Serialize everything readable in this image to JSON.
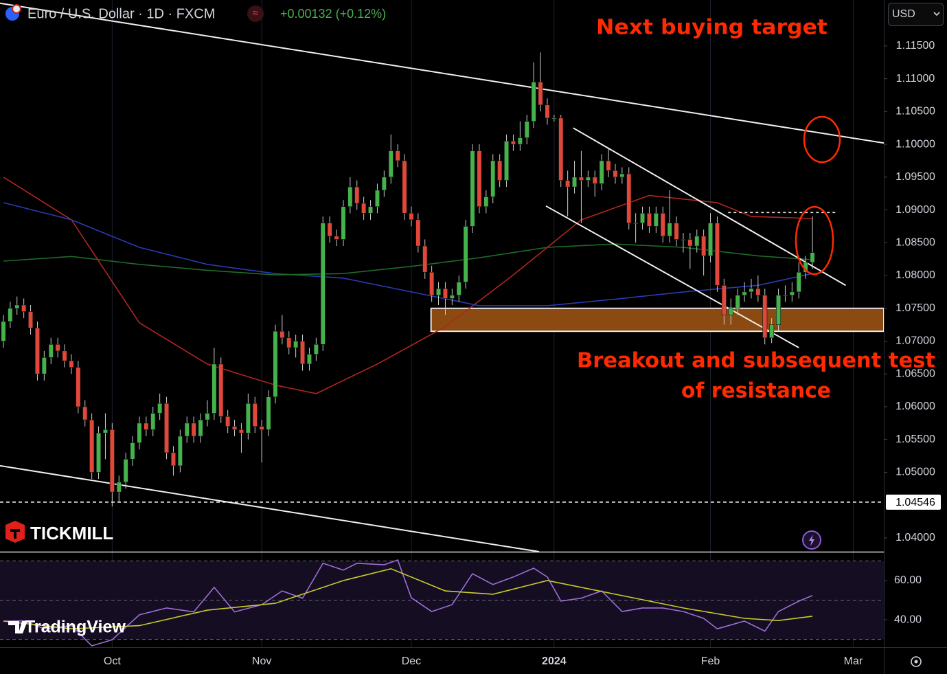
{
  "chart_data": {
    "type": "candlestick",
    "title": "Euro / U.S. Dollar · 1D · FXCM",
    "change": "+0.00132 (+0.12%)",
    "currency": "USD",
    "annotations": [
      "Next buying target",
      "Breakout and subsequent test",
      "of resistance"
    ],
    "brands": [
      "TICKMILL",
      "TradingView"
    ],
    "up_color": "#43b34a",
    "down_color": "#e2483a",
    "xlim": [
      -0.5,
      129.5
    ],
    "ylim": [
      1.0379,
      1.122
    ],
    "xticks": [
      {
        "value": 16,
        "label": "Oct"
      },
      {
        "value": 38,
        "label": "Nov"
      },
      {
        "value": 60,
        "label": "Dec"
      },
      {
        "value": 81,
        "label": "2024"
      },
      {
        "value": 104,
        "label": "Feb"
      },
      {
        "value": 125,
        "label": "Mar"
      }
    ],
    "yticks": [
      {
        "value": 1.04,
        "label": "1.04000"
      },
      {
        "value": 1.05,
        "label": "1.05000"
      },
      {
        "value": 1.055,
        "label": "1.05500"
      },
      {
        "value": 1.06,
        "label": "1.06000"
      },
      {
        "value": 1.065,
        "label": "1.06500"
      },
      {
        "value": 1.07,
        "label": "1.07000"
      },
      {
        "value": 1.075,
        "label": "1.07500"
      },
      {
        "value": 1.08,
        "label": "1.08000"
      },
      {
        "value": 1.085,
        "label": "1.08500"
      },
      {
        "value": 1.09,
        "label": "1.09000"
      },
      {
        "value": 1.095,
        "label": "1.09500"
      },
      {
        "value": 1.1,
        "label": "1.10000"
      },
      {
        "value": 1.105,
        "label": "1.10500"
      },
      {
        "value": 1.11,
        "label": "1.11000"
      },
      {
        "value": 1.115,
        "label": "1.11500"
      }
    ],
    "grid": "x",
    "price_line": {
      "value": 1.04546,
      "label": "1.04546"
    },
    "open": [
      1.07,
      1.073,
      1.075,
      1.0755,
      1.0745,
      1.072,
      1.065,
      1.0675,
      1.0695,
      1.0685,
      1.067,
      1.066,
      1.06,
      1.058,
      1.05,
      1.056,
      1.0565,
      1.047,
      1.0485,
      1.052,
      1.0545,
      1.0575,
      1.0565,
      1.059,
      1.0605,
      1.053,
      1.051,
      1.0555,
      1.0575,
      1.0555,
      1.058,
      1.059,
      1.0665,
      1.0585,
      1.057,
      1.0565,
      1.056,
      1.0605,
      1.057,
      1.0565,
      1.0615,
      1.0715,
      1.0705,
      1.069,
      1.07,
      1.0665,
      1.068,
      1.0695,
      1.088,
      1.086,
      1.0855,
      1.0905,
      1.0935,
      1.091,
      1.0895,
      1.0905,
      1.093,
      1.095,
      1.099,
      1.0975,
      1.0895,
      1.0885,
      1.0845,
      1.0805,
      1.077,
      1.078,
      1.0765,
      1.077,
      1.079,
      1.0875,
      1.099,
      1.0905,
      1.092,
      1.0975,
      1.0945,
      1.1005,
      1.1,
      1.101,
      1.1035,
      1.1095,
      1.106,
      1.104,
      1.104,
      1.0945,
      1.0935,
      1.095,
      1.0945,
      1.095,
      1.094,
      1.0975,
      1.096,
      1.095,
      1.0955,
      1.088,
      1.088,
      1.0895,
      1.0875,
      1.0895,
      1.086,
      1.088,
      1.0855,
      1.0855,
      1.0845,
      1.086,
      1.083,
      1.088,
      1.0785,
      1.074,
      1.075,
      1.077,
      1.0775,
      1.078,
      1.077,
      1.0705,
      1.0725,
      1.077,
      1.077,
      1.0775,
      1.0805,
      1.082
    ],
    "high": [
      1.074,
      1.076,
      1.0768,
      1.0765,
      1.0755,
      1.073,
      1.0685,
      1.0705,
      1.0705,
      1.0695,
      1.068,
      1.067,
      1.061,
      1.059,
      1.057,
      1.059,
      1.0575,
      1.0495,
      1.053,
      1.0555,
      1.0585,
      1.0585,
      1.06,
      1.062,
      1.0615,
      1.054,
      1.0565,
      1.0585,
      1.0585,
      1.059,
      1.061,
      1.069,
      1.0675,
      1.0595,
      1.058,
      1.0575,
      1.062,
      1.0615,
      1.058,
      1.0625,
      1.0725,
      1.074,
      1.0715,
      1.071,
      1.071,
      1.069,
      1.0705,
      1.089,
      1.089,
      1.087,
      1.0915,
      1.095,
      1.0945,
      1.092,
      1.0915,
      1.094,
      1.096,
      1.1015,
      1.1,
      1.0985,
      1.0905,
      1.0895,
      1.0855,
      1.0815,
      1.079,
      1.079,
      1.078,
      1.08,
      1.0885,
      1.1,
      1.1,
      1.093,
      1.0985,
      1.0985,
      1.1015,
      1.1015,
      1.1035,
      1.1045,
      1.1125,
      1.114,
      1.107,
      1.1045,
      1.1045,
      1.096,
      1.0975,
      1.099,
      1.096,
      1.096,
      1.0985,
      1.0995,
      1.097,
      1.0965,
      1.0965,
      1.0895,
      1.0905,
      1.0905,
      1.0905,
      1.0905,
      1.093,
      1.089,
      1.0865,
      1.0865,
      1.087,
      1.087,
      1.0895,
      1.089,
      1.0795,
      1.0765,
      1.078,
      1.079,
      1.0795,
      1.08,
      1.078,
      1.0735,
      1.078,
      1.0785,
      1.079,
      1.082,
      1.083,
      1.089
    ],
    "low": [
      1.069,
      1.072,
      1.074,
      1.0735,
      1.071,
      1.064,
      1.064,
      1.0665,
      1.0675,
      1.066,
      1.065,
      1.059,
      1.057,
      1.049,
      1.049,
      1.052,
      1.0448,
      1.0455,
      1.0475,
      1.051,
      1.0535,
      1.0555,
      1.0555,
      1.058,
      1.052,
      1.0495,
      1.05,
      1.0545,
      1.0545,
      1.0545,
      1.057,
      1.058,
      1.0575,
      1.056,
      1.0555,
      1.053,
      1.055,
      1.056,
      1.0515,
      1.0555,
      1.0605,
      1.0695,
      1.068,
      1.0675,
      1.0655,
      1.0655,
      1.067,
      1.0685,
      1.085,
      1.0845,
      1.0845,
      1.0895,
      1.09,
      1.0885,
      1.0885,
      1.0895,
      1.092,
      1.094,
      1.0965,
      1.0885,
      1.0875,
      1.0835,
      1.0795,
      1.076,
      1.0755,
      1.074,
      1.0755,
      1.076,
      1.078,
      1.0865,
      1.0895,
      1.0895,
      1.091,
      1.0935,
      1.0935,
      1.099,
      1.099,
      1.1,
      1.1025,
      1.105,
      1.103,
      1.1035,
      1.0935,
      1.089,
      1.0925,
      1.088,
      1.0935,
      1.092,
      1.093,
      1.095,
      1.094,
      1.094,
      1.087,
      1.085,
      1.087,
      1.0865,
      1.0865,
      1.085,
      1.085,
      1.0845,
      1.0835,
      1.081,
      1.0835,
      1.08,
      1.082,
      1.0775,
      1.0725,
      1.0725,
      1.074,
      1.076,
      1.0765,
      1.076,
      1.0695,
      1.0697,
      1.0715,
      1.076,
      1.076,
      1.0765,
      1.0795,
      1.081
    ],
    "close": [
      1.073,
      1.075,
      1.0755,
      1.0745,
      1.072,
      1.065,
      1.0675,
      1.0695,
      1.0685,
      1.067,
      1.066,
      1.06,
      1.058,
      1.05,
      1.056,
      1.0565,
      1.047,
      1.0485,
      1.052,
      1.0545,
      1.0575,
      1.0565,
      1.059,
      1.0605,
      1.053,
      1.051,
      1.0555,
      1.0575,
      1.0555,
      1.058,
      1.059,
      1.0665,
      1.0585,
      1.057,
      1.0565,
      1.056,
      1.0605,
      1.057,
      1.0565,
      1.0615,
      1.0715,
      1.0705,
      1.069,
      1.07,
      1.0665,
      1.068,
      1.0695,
      1.088,
      1.086,
      1.0855,
      1.0905,
      1.0935,
      1.091,
      1.0895,
      1.0905,
      1.093,
      1.095,
      1.099,
      1.0975,
      1.0895,
      1.0885,
      1.0845,
      1.0805,
      1.077,
      1.078,
      1.0765,
      1.077,
      1.079,
      1.0875,
      1.099,
      1.0905,
      1.092,
      1.0975,
      1.0945,
      1.1005,
      1.1,
      1.101,
      1.1035,
      1.1095,
      1.106,
      1.104,
      1.104,
      1.0945,
      1.0935,
      1.095,
      1.0945,
      1.095,
      1.094,
      1.0975,
      1.096,
      1.095,
      1.0955,
      1.088,
      1.088,
      1.0895,
      1.0875,
      1.0895,
      1.086,
      1.088,
      1.0855,
      1.0855,
      1.0845,
      1.086,
      1.083,
      1.088,
      1.0785,
      1.074,
      1.075,
      1.077,
      1.0775,
      1.078,
      1.077,
      1.0705,
      1.0725,
      1.077,
      1.077,
      1.0775,
      1.0805,
      1.082,
      1.0835
    ],
    "series": [
      {
        "color": "#b3261e",
        "x": [
          0,
          10,
          20,
          30,
          40,
          46,
          55,
          65,
          75,
          85,
          95,
          105,
          110,
          119
        ],
        "values": [
          1.095,
          1.0885,
          1.0728,
          1.0665,
          1.0633,
          1.062,
          1.0665,
          1.0722,
          1.0801,
          1.0885,
          1.0922,
          1.0911,
          1.089,
          1.0887
        ]
      },
      {
        "color": "#2a3bb5",
        "x": [
          0,
          10,
          20,
          30,
          40,
          50,
          60,
          70,
          80,
          90,
          100,
          111,
          119
        ],
        "values": [
          1.0911,
          1.0885,
          1.0843,
          1.0817,
          1.0803,
          1.0796,
          1.0775,
          1.0754,
          1.0754,
          1.0764,
          1.0775,
          1.0785,
          1.0803
        ]
      },
      {
        "color": "#1f6b2a",
        "x": [
          0,
          10,
          20,
          30,
          40,
          50,
          60,
          70,
          80,
          90,
          100,
          111,
          119
        ],
        "values": [
          1.0822,
          1.0829,
          1.0817,
          1.0808,
          1.0801,
          1.0803,
          1.0814,
          1.0827,
          1.0843,
          1.0848,
          1.0843,
          1.083,
          1.0824
        ]
      }
    ],
    "trendlines": [
      {
        "x": [
          -0.5,
          129.5
        ],
        "y": [
          1.1215,
          1.1002
        ]
      },
      {
        "x": [
          -0.5,
          78.8
        ],
        "y": [
          1.051,
          1.0379
        ]
      },
      {
        "x": [
          83.8,
          123.9
        ],
        "y": [
          1.1025,
          1.0785
        ]
      },
      {
        "x": [
          79.8,
          117
        ],
        "y": [
          1.0906,
          1.069
        ]
      }
    ],
    "level": {
      "x": [
        106.6,
        122.7
      ],
      "y": 1.0896
    },
    "zone": {
      "x": [
        62.9,
        129.5
      ],
      "y": [
        1.075,
        1.0715
      ]
    },
    "indicator": {
      "ylim": [
        26,
        74
      ],
      "yticks": [
        {
          "value": 60,
          "label": "60.00"
        },
        {
          "value": 40,
          "label": "40.00"
        }
      ],
      "levels": [
        70,
        50,
        30
      ],
      "series": [
        {
          "color": "#9c6fd6",
          "x": [
            0,
            3,
            6,
            10,
            13,
            16,
            20,
            24,
            28,
            31,
            34,
            38,
            41,
            44,
            47,
            50,
            52,
            56,
            58,
            60,
            63,
            66,
            69,
            72,
            75,
            78,
            80,
            82,
            85,
            88,
            91,
            94,
            97,
            100,
            103,
            105,
            109,
            112,
            114,
            117,
            119
          ],
          "values": [
            39.3,
            39.5,
            35.4,
            37,
            26.7,
            29.8,
            42.5,
            46,
            44,
            56.5,
            44,
            47.7,
            54.7,
            51,
            68.8,
            65.3,
            68.8,
            68,
            70.5,
            51.2,
            44.2,
            47.7,
            63.5,
            58,
            61.8,
            66.3,
            61.8,
            49.5,
            51,
            54.7,
            44.2,
            46,
            46,
            44.2,
            40.7,
            35.4,
            39.3,
            34.2,
            44.2,
            49.5,
            52.3
          ]
        },
        {
          "color": "#c9cc2a",
          "x": [
            0,
            10,
            20,
            30,
            40,
            50,
            57,
            65,
            72,
            80,
            90,
            100,
            109,
            114,
            119
          ],
          "values": [
            39.3,
            35.4,
            37,
            44.9,
            48.4,
            60,
            66,
            54.7,
            53,
            60,
            53,
            46,
            40.7,
            39.6,
            41.8
          ]
        }
      ]
    }
  }
}
